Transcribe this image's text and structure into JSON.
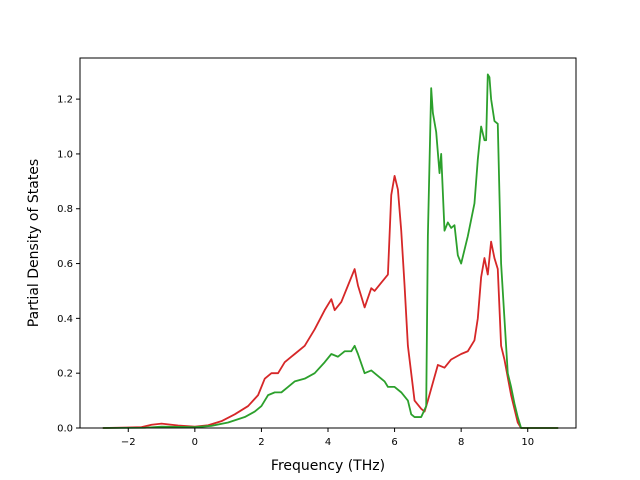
{
  "chart_data": {
    "type": "line",
    "title": "",
    "xlabel": "Frequency (THz)",
    "ylabel": "Partial Density of States",
    "xlim": [
      -3.45,
      11.45
    ],
    "ylim": [
      0,
      1.35
    ],
    "xticks": [
      -2,
      0,
      2,
      4,
      6,
      8,
      10
    ],
    "xtick_labels": [
      "−2",
      "0",
      "2",
      "4",
      "6",
      "8",
      "10"
    ],
    "yticks": [
      0.0,
      0.2,
      0.4,
      0.6,
      0.8,
      1.0,
      1.2
    ],
    "ytick_labels": [
      "0.0",
      "0.2",
      "0.4",
      "0.6",
      "0.8",
      "1.0",
      "1.2"
    ],
    "grid": false,
    "legend": "none",
    "series": [
      {
        "color": "#d62728",
        "x": [
          -2.75,
          -1.6,
          -1.3,
          -1.0,
          -0.5,
          0.0,
          0.4,
          0.8,
          1.2,
          1.6,
          1.9,
          2.1,
          2.3,
          2.5,
          2.7,
          2.9,
          3.0,
          3.3,
          3.6,
          3.9,
          4.1,
          4.2,
          4.4,
          4.6,
          4.8,
          4.9,
          5.1,
          5.3,
          5.4,
          5.6,
          5.8,
          5.9,
          6.0,
          6.1,
          6.2,
          6.3,
          6.4,
          6.6,
          6.8,
          6.9,
          7.0,
          7.3,
          7.5,
          7.7,
          8.0,
          8.2,
          8.4,
          8.5,
          8.6,
          8.7,
          8.8,
          8.9,
          9.0,
          9.1,
          9.2,
          9.3,
          9.5,
          9.6,
          9.7,
          9.8,
          10.9
        ],
        "values": [
          0.0,
          0.003,
          0.012,
          0.016,
          0.009,
          0.005,
          0.01,
          0.025,
          0.05,
          0.08,
          0.12,
          0.18,
          0.2,
          0.2,
          0.24,
          0.26,
          0.27,
          0.3,
          0.36,
          0.43,
          0.47,
          0.43,
          0.46,
          0.52,
          0.58,
          0.52,
          0.44,
          0.51,
          0.5,
          0.53,
          0.56,
          0.85,
          0.92,
          0.87,
          0.72,
          0.52,
          0.3,
          0.1,
          0.07,
          0.06,
          0.1,
          0.23,
          0.22,
          0.25,
          0.27,
          0.28,
          0.32,
          0.4,
          0.55,
          0.62,
          0.56,
          0.68,
          0.62,
          0.58,
          0.3,
          0.25,
          0.12,
          0.07,
          0.02,
          0.0,
          0.0
        ]
      },
      {
        "color": "#2ca02c",
        "x": [
          -2.75,
          -1.5,
          -1.0,
          -0.5,
          0.0,
          0.5,
          1.0,
          1.5,
          1.8,
          2.0,
          2.2,
          2.4,
          2.6,
          2.8,
          3.0,
          3.3,
          3.6,
          3.9,
          4.1,
          4.3,
          4.5,
          4.7,
          4.8,
          4.9,
          5.1,
          5.3,
          5.5,
          5.7,
          5.8,
          5.9,
          6.0,
          6.2,
          6.4,
          6.5,
          6.6,
          6.8,
          6.95,
          7.0,
          7.1,
          7.15,
          7.25,
          7.35,
          7.4,
          7.5,
          7.6,
          7.7,
          7.8,
          7.9,
          8.0,
          8.2,
          8.4,
          8.5,
          8.6,
          8.7,
          8.75,
          8.8,
          8.85,
          8.9,
          9.0,
          9.1,
          9.2,
          9.3,
          9.4,
          9.5,
          9.6,
          9.7,
          9.8,
          10.9
        ],
        "values": [
          0.0,
          0.001,
          0.005,
          0.004,
          0.003,
          0.008,
          0.02,
          0.04,
          0.06,
          0.08,
          0.12,
          0.13,
          0.13,
          0.15,
          0.17,
          0.18,
          0.2,
          0.24,
          0.27,
          0.26,
          0.28,
          0.28,
          0.3,
          0.27,
          0.2,
          0.21,
          0.19,
          0.17,
          0.15,
          0.15,
          0.15,
          0.13,
          0.1,
          0.05,
          0.04,
          0.04,
          0.08,
          0.7,
          1.24,
          1.15,
          1.08,
          0.93,
          1.0,
          0.72,
          0.75,
          0.73,
          0.74,
          0.63,
          0.6,
          0.7,
          0.82,
          0.98,
          1.1,
          1.05,
          1.05,
          1.29,
          1.28,
          1.2,
          1.12,
          1.11,
          0.6,
          0.4,
          0.2,
          0.15,
          0.09,
          0.04,
          0.0,
          0.0
        ]
      }
    ]
  }
}
